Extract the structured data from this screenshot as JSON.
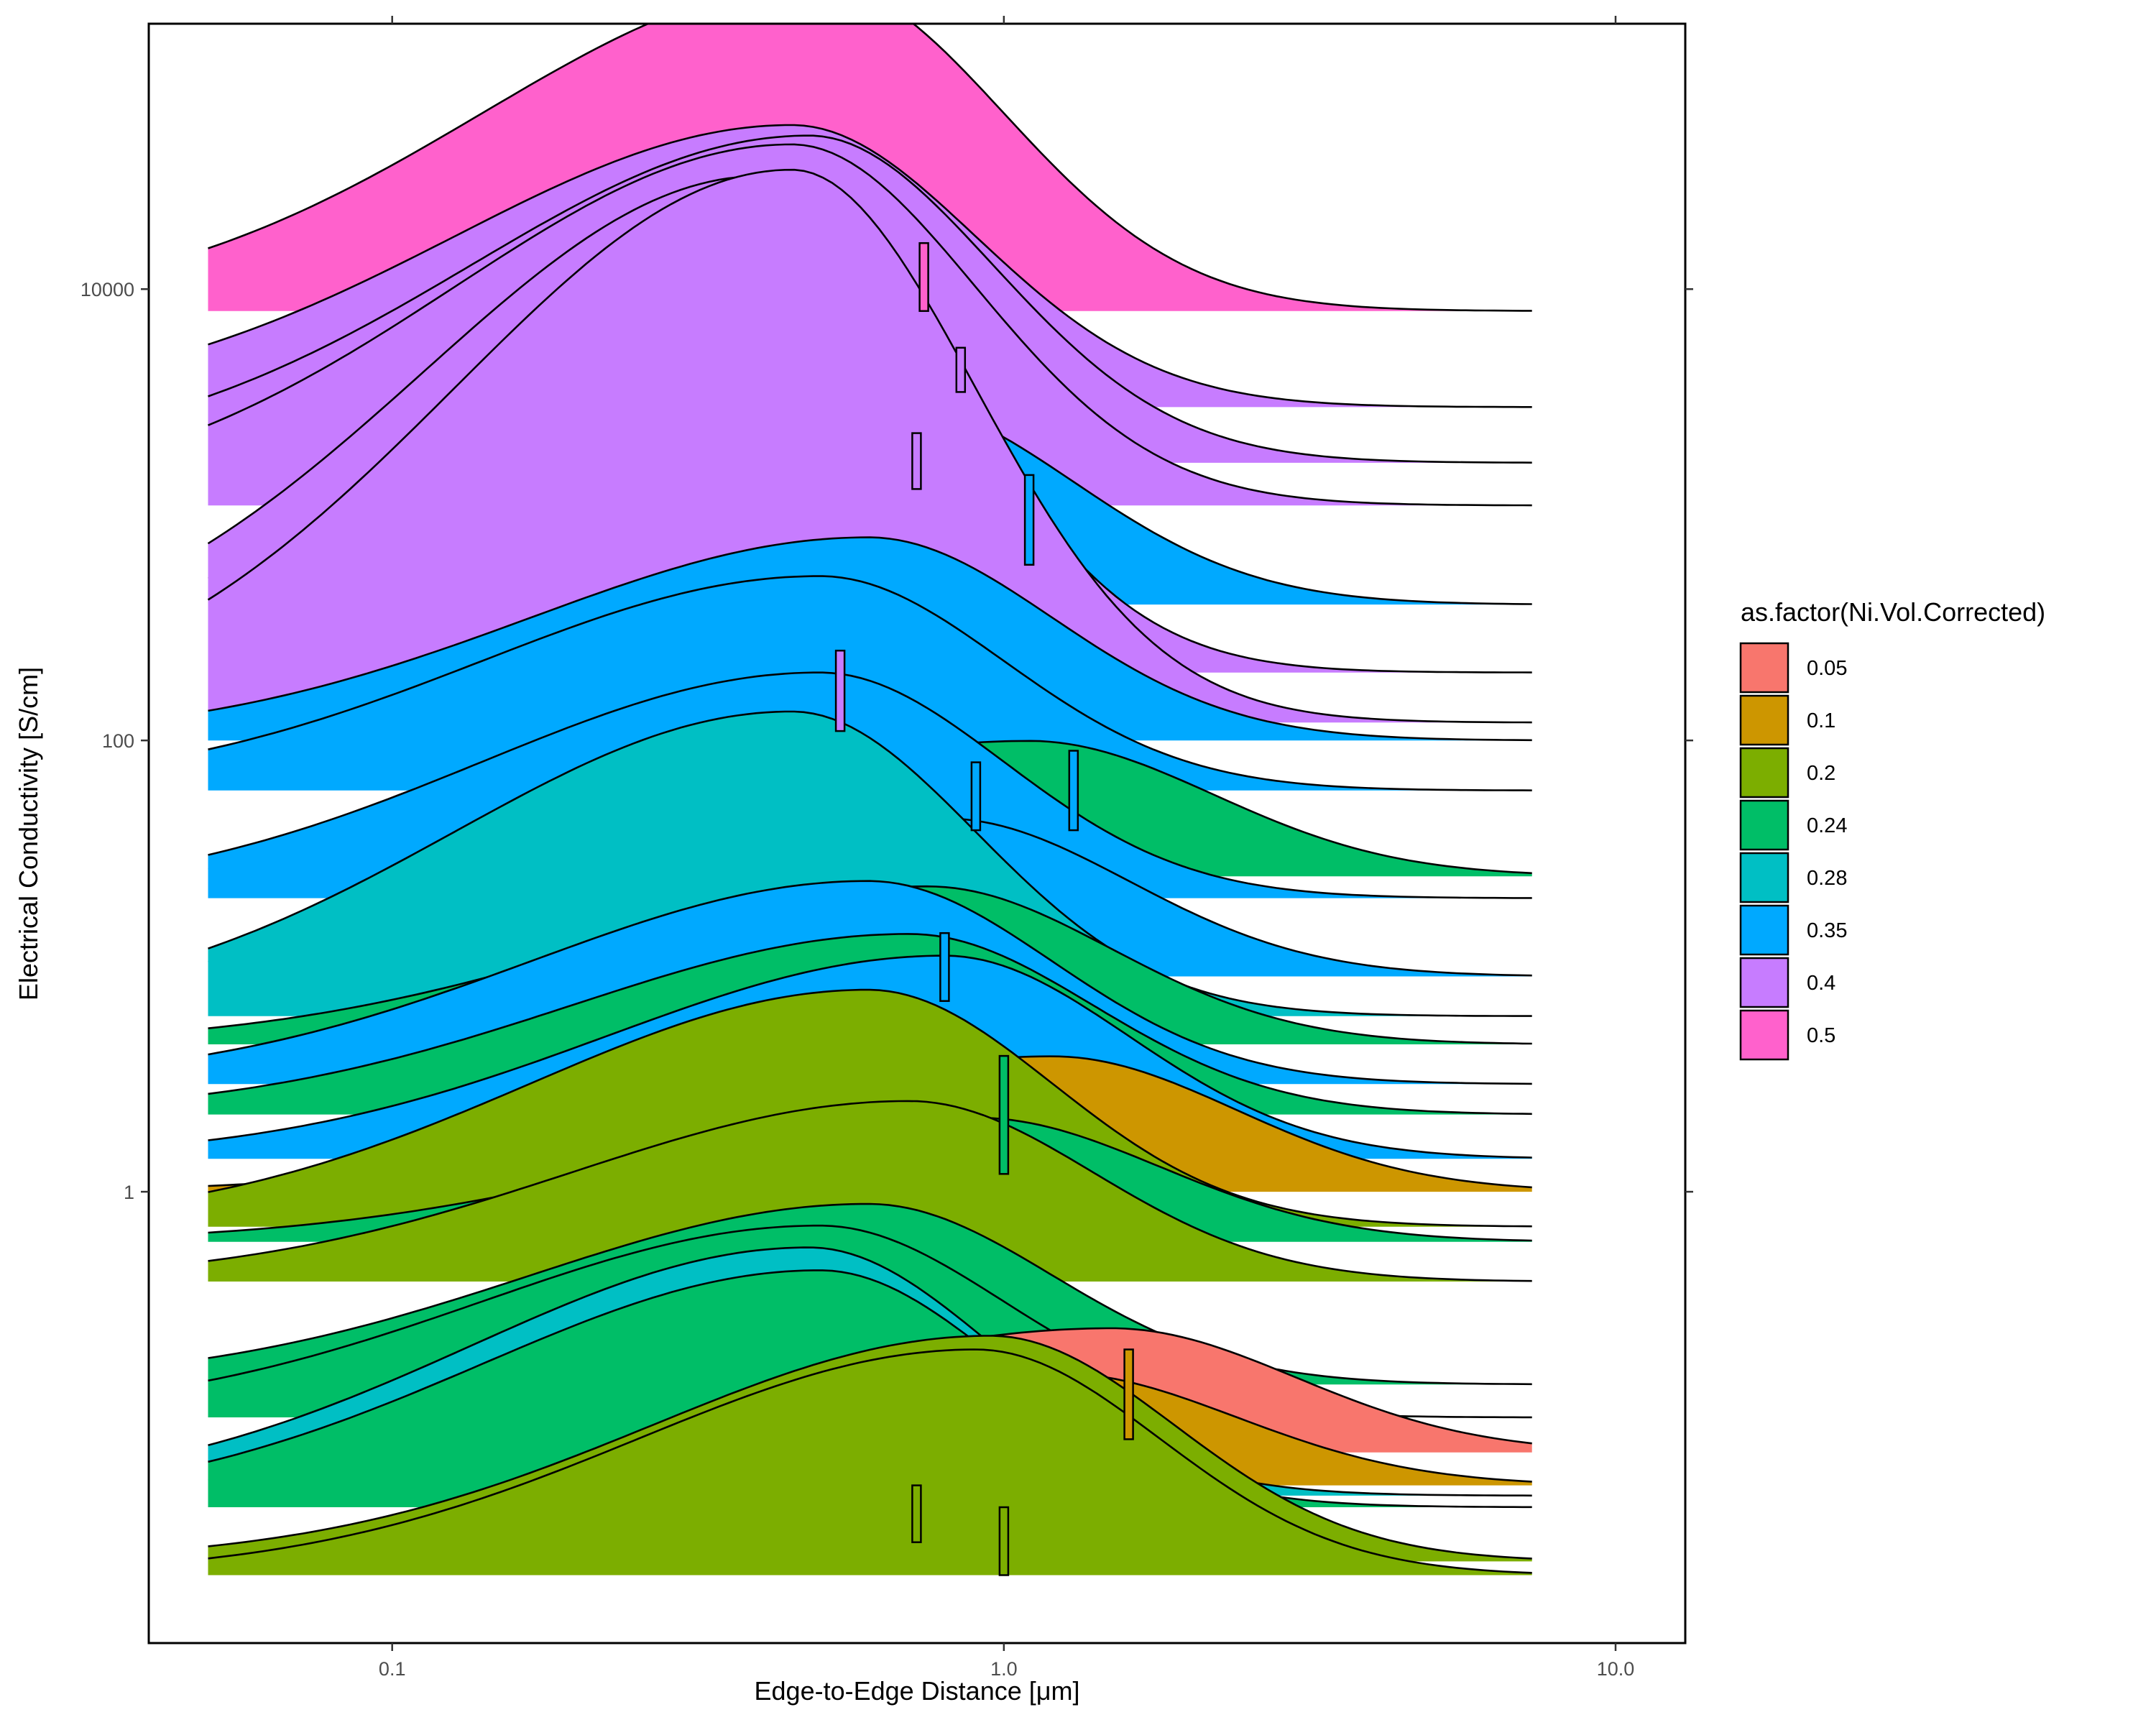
{
  "chart_data": {
    "type": "area",
    "subtype": "ridgeline",
    "xlabel": "Edge-to-Edge Distance [μm]",
    "ylabel": "Electrical Conductivity [S/cm]",
    "x_scale": "log10",
    "y_scale": "log10",
    "xlim": [
      0.04,
      13
    ],
    "ylim": [
      0.01,
      150000
    ],
    "x_ticks": [
      0.1,
      1.0,
      10.0
    ],
    "x_tick_labels": [
      "0.1",
      "1.0",
      "10.0"
    ],
    "y_ticks": [
      1,
      100,
      10000
    ],
    "y_tick_labels": [
      "1",
      "100",
      "10000"
    ],
    "ridge_x_range": [
      0.05,
      7.3
    ],
    "legend": {
      "title": "as.factor(Ni.Vol.Corrected)",
      "position": "right",
      "entries": [
        {
          "label": "0.05",
          "color": "#F8766D"
        },
        {
          "label": "0.1",
          "color": "#CD9600"
        },
        {
          "label": "0.2",
          "color": "#7CAE00"
        },
        {
          "label": "0.24",
          "color": "#00BE67"
        },
        {
          "label": "0.28",
          "color": "#00BFC4"
        },
        {
          "label": "0.35",
          "color": "#00A9FF"
        },
        {
          "label": "0.4",
          "color": "#C77CFF"
        },
        {
          "label": "0.5",
          "color": "#FF61CC"
        }
      ]
    },
    "series": [
      {
        "group": "0.2",
        "baseline": 0.02,
        "peak_x": 0.9,
        "height": 1.0
      },
      {
        "group": "0.2",
        "baseline": 0.023,
        "peak_x": 0.95,
        "height": 1.0
      },
      {
        "group": "0.24",
        "baseline": 0.04,
        "peak_x": 0.5,
        "height": 1.05
      },
      {
        "group": "0.28",
        "baseline": 0.045,
        "peak_x": 0.48,
        "height": 1.1
      },
      {
        "group": "0.1",
        "baseline": 0.05,
        "peak_x": 1.2,
        "height": 0.5
      },
      {
        "group": "0.05",
        "baseline": 0.07,
        "peak_x": 1.5,
        "height": 0.55
      },
      {
        "group": "0.24",
        "baseline": 0.1,
        "peak_x": 0.5,
        "height": 0.85
      },
      {
        "group": "0.24",
        "baseline": 0.14,
        "peak_x": 0.6,
        "height": 0.8
      },
      {
        "group": "0.2",
        "baseline": 0.4,
        "peak_x": 0.7,
        "height": 0.8
      },
      {
        "group": "0.24",
        "baseline": 0.6,
        "peak_x": 0.9,
        "height": 0.55
      },
      {
        "group": "0.2",
        "baseline": 0.7,
        "peak_x": 0.6,
        "height": 1.05
      },
      {
        "group": "0.1",
        "baseline": 1.0,
        "peak_x": 1.2,
        "height": 0.6
      },
      {
        "group": "0.35",
        "baseline": 1.4,
        "peak_x": 0.8,
        "height": 0.9
      },
      {
        "group": "0.24",
        "baseline": 2.2,
        "peak_x": 0.7,
        "height": 0.8
      },
      {
        "group": "0.35",
        "baseline": 3.0,
        "peak_x": 0.6,
        "height": 0.9
      },
      {
        "group": "0.24",
        "baseline": 4.5,
        "peak_x": 0.75,
        "height": 0.7
      },
      {
        "group": "0.28",
        "baseline": 6.0,
        "peak_x": 0.45,
        "height": 1.35
      },
      {
        "group": "0.35",
        "baseline": 9.0,
        "peak_x": 0.8,
        "height": 0.7
      },
      {
        "group": "0.35",
        "baseline": 20,
        "peak_x": 0.5,
        "height": 1.0
      },
      {
        "group": "0.24",
        "baseline": 25,
        "peak_x": 1.1,
        "height": 0.6
      },
      {
        "group": "0.35",
        "baseline": 60,
        "peak_x": 0.5,
        "height": 0.95
      },
      {
        "group": "0.35",
        "baseline": 100,
        "peak_x": 0.6,
        "height": 0.9
      },
      {
        "group": "0.4",
        "baseline": 120,
        "peak_x": 0.45,
        "height": 2.45
      },
      {
        "group": "0.4",
        "baseline": 200,
        "peak_x": 0.4,
        "height": 2.2
      },
      {
        "group": "0.35",
        "baseline": 400,
        "peak_x": 0.65,
        "height": 0.9
      },
      {
        "group": "0.4",
        "baseline": 1100,
        "peak_x": 0.45,
        "height": 1.6
      },
      {
        "group": "0.4",
        "baseline": 1700,
        "peak_x": 0.48,
        "height": 1.45
      },
      {
        "group": "0.4",
        "baseline": 3000,
        "peak_x": 0.45,
        "height": 1.25
      },
      {
        "group": "0.5",
        "baseline": 8000,
        "peak_x": 0.5,
        "height": 1.45
      }
    ],
    "marker_ranges": [
      {
        "group": "0.5",
        "x": 0.74,
        "y_low": 8000,
        "y_high": 16000
      },
      {
        "group": "0.4",
        "x": 0.85,
        "y_low": 3500,
        "y_high": 5500
      },
      {
        "group": "0.4",
        "x": 0.72,
        "y_low": 1300,
        "y_high": 2300
      },
      {
        "group": "0.4",
        "x": 0.54,
        "y_low": 110,
        "y_high": 250
      },
      {
        "group": "0.35",
        "x": 1.1,
        "y_low": 600,
        "y_high": 1500
      },
      {
        "group": "0.35",
        "x": 0.9,
        "y_low": 40,
        "y_high": 80
      },
      {
        "group": "0.35",
        "x": 1.3,
        "y_low": 40,
        "y_high": 90
      },
      {
        "group": "0.24",
        "x": 1.0,
        "y_low": 1.2,
        "y_high": 4
      },
      {
        "group": "0.35",
        "x": 0.8,
        "y_low": 7,
        "y_high": 14
      },
      {
        "group": "0.1",
        "x": 1.6,
        "y_low": 0.08,
        "y_high": 0.2
      },
      {
        "group": "0.2",
        "x": 0.72,
        "y_low": 0.028,
        "y_high": 0.05
      },
      {
        "group": "0.2",
        "x": 1.0,
        "y_low": 0.02,
        "y_high": 0.04
      }
    ]
  }
}
